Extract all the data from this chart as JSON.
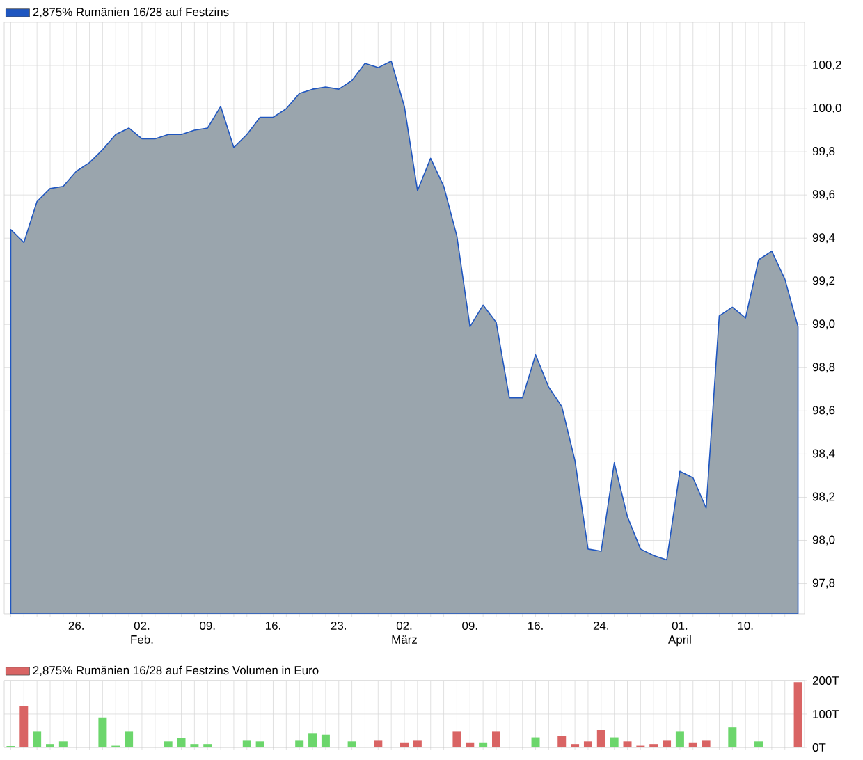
{
  "chart_data": [
    {
      "type": "area",
      "categories": [
        null,
        null,
        null,
        null,
        null,
        "26.",
        null,
        null,
        null,
        null,
        "02. Feb.",
        null,
        null,
        null,
        null,
        "09.",
        null,
        null,
        null,
        null,
        "16.",
        null,
        null,
        null,
        null,
        "23.",
        null,
        null,
        null,
        null,
        "02. März",
        null,
        null,
        null,
        null,
        "09.",
        null,
        null,
        null,
        null,
        "16.",
        null,
        null,
        null,
        null,
        "24.",
        null,
        null,
        null,
        null,
        null,
        "01. April",
        null,
        null,
        null,
        null,
        "10.",
        null,
        null,
        null,
        null
      ],
      "series": [
        {
          "name": "2,875% Rumänien 16/28 auf Festzins",
          "color": "#1f56c0",
          "values": [
            99.44,
            99.38,
            99.57,
            99.63,
            99.64,
            99.71,
            99.75,
            99.81,
            99.88,
            99.91,
            99.86,
            99.86,
            99.88,
            99.88,
            99.9,
            99.91,
            100.01,
            99.82,
            99.88,
            99.96,
            99.96,
            100.0,
            100.07,
            100.09,
            100.1,
            100.09,
            100.13,
            100.21,
            100.19,
            100.22,
            100.01,
            99.62,
            99.77,
            99.64,
            99.41,
            98.99,
            99.09,
            99.01,
            98.66,
            98.66,
            98.86,
            98.71,
            98.62,
            98.37,
            97.96,
            97.95,
            98.36,
            98.11,
            97.96,
            97.93,
            97.91,
            98.32,
            98.29,
            98.15,
            99.04,
            99.08,
            99.03,
            99.3,
            99.34,
            99.21,
            98.99
          ]
        }
      ],
      "ylim": [
        97.66,
        100.4
      ],
      "yticks": [
        {
          "value": 97.8,
          "label": "97,8"
        },
        {
          "value": 98.0,
          "label": "98,0"
        },
        {
          "value": 98.2,
          "label": "98,2"
        },
        {
          "value": 98.4,
          "label": "98,4"
        },
        {
          "value": 98.6,
          "label": "98,6"
        },
        {
          "value": 98.8,
          "label": "98,8"
        },
        {
          "value": 99.0,
          "label": "99,0"
        },
        {
          "value": 99.2,
          "label": "99,2"
        },
        {
          "value": 99.4,
          "label": "99,4"
        },
        {
          "value": 99.6,
          "label": "99,6"
        },
        {
          "value": 99.8,
          "label": "99,8"
        },
        {
          "value": 100.0,
          "label": "100,0"
        },
        {
          "value": 100.2,
          "label": "100,2"
        }
      ],
      "grid": true,
      "legend": "top left"
    },
    {
      "type": "bar",
      "categories": [
        null,
        null,
        null,
        null,
        null,
        null,
        null,
        null,
        null,
        null,
        null,
        null,
        null,
        null,
        null,
        null,
        null,
        null,
        null,
        null,
        null,
        null,
        null,
        null,
        null,
        null,
        null,
        null,
        null,
        null,
        null,
        null,
        null,
        null,
        null,
        null,
        null,
        null,
        null,
        null,
        null,
        null,
        null,
        null,
        null,
        null,
        null,
        null,
        null,
        null,
        null,
        null,
        null,
        null,
        null,
        null,
        null,
        null,
        null,
        null,
        null
      ],
      "series": [
        {
          "name": "2,875% Rumänien 16/28 auf Festzins Volumen in Euro",
          "color": "#d96464",
          "values": [
            4,
            123,
            47,
            10,
            18,
            null,
            null,
            90,
            5,
            47,
            null,
            null,
            18,
            27,
            10,
            10,
            null,
            null,
            22,
            18,
            null,
            2,
            22,
            43,
            38,
            null,
            18,
            null,
            22,
            null,
            15,
            22,
            null,
            null,
            47,
            15,
            15,
            47,
            null,
            null,
            30,
            null,
            35,
            10,
            18,
            52,
            30,
            18,
            5,
            10,
            22,
            47,
            15,
            22,
            null,
            60,
            null,
            18,
            null,
            null,
            195
          ],
          "colors": [
            "#6cd66c",
            "#d96464",
            "#6cd66c",
            "#6cd66c",
            "#6cd66c",
            null,
            null,
            "#6cd66c",
            "#6cd66c",
            "#6cd66c",
            null,
            null,
            "#6cd66c",
            "#6cd66c",
            "#6cd66c",
            "#6cd66c",
            null,
            null,
            "#6cd66c",
            "#6cd66c",
            null,
            "#6cd66c",
            "#6cd66c",
            "#6cd66c",
            "#6cd66c",
            null,
            "#6cd66c",
            null,
            "#d96464",
            null,
            "#d96464",
            "#d96464",
            null,
            null,
            "#d96464",
            "#d96464",
            "#6cd66c",
            "#d96464",
            null,
            null,
            "#6cd66c",
            null,
            "#d96464",
            "#d96464",
            "#d96464",
            "#d96464",
            "#6cd66c",
            "#d96464",
            "#d96464",
            "#d96464",
            "#d96464",
            "#6cd66c",
            "#d96464",
            "#d96464",
            null,
            "#6cd66c",
            null,
            "#6cd66c",
            null,
            null,
            "#d96464"
          ]
        }
      ],
      "ylim": [
        0,
        200
      ],
      "yticks": [
        {
          "value": 0,
          "label": "0T"
        },
        {
          "value": 100,
          "label": "100T"
        },
        {
          "value": 200,
          "label": "200T"
        }
      ],
      "grid": true,
      "legend": "top left",
      "tick_labels": "y"
    }
  ]
}
